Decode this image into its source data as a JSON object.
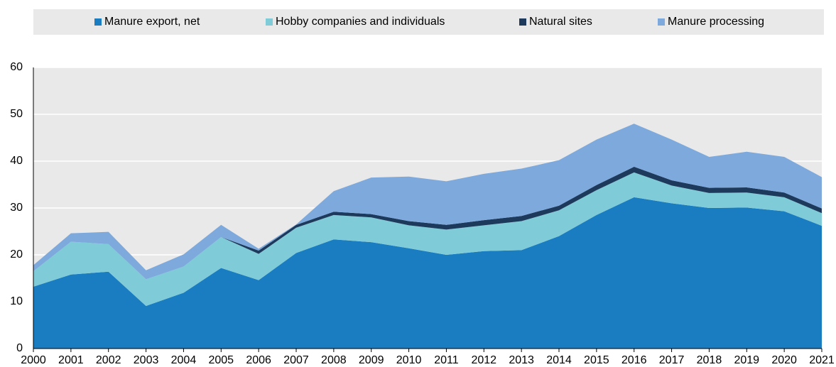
{
  "chart_data": {
    "type": "stacked_area",
    "categories": [
      "2000",
      "2001",
      "2002",
      "2003",
      "2004",
      "2005",
      "2006",
      "2007",
      "2008",
      "2009",
      "2010",
      "2011",
      "2012",
      "2013",
      "2014",
      "2015",
      "2016",
      "2017",
      "2018",
      "2019",
      "2020",
      "2021"
    ],
    "series": [
      {
        "name": "Manure export, net",
        "color": "#1a7dc2",
        "values": [
          13.2,
          15.8,
          16.4,
          9.1,
          11.9,
          17.2,
          14.6,
          20.4,
          23.3,
          22.7,
          21.4,
          20.0,
          20.8,
          21.0,
          24.0,
          28.5,
          32.3,
          31.0,
          30.0,
          30.1,
          29.3,
          26.2
        ]
      },
      {
        "name": "Hobby companies and individuals",
        "color": "#7fcbd8",
        "values": [
          3.3,
          7.0,
          5.9,
          5.7,
          5.6,
          6.6,
          5.6,
          5.4,
          5.2,
          5.3,
          4.9,
          5.4,
          5.5,
          6.2,
          5.5,
          5.3,
          5.3,
          3.8,
          3.2,
          3.2,
          3.0,
          2.7
        ]
      },
      {
        "name": "Natural sites",
        "color": "#1d3a5c",
        "values": [
          0,
          0,
          0,
          0,
          0,
          0,
          0.7,
          0.6,
          0.7,
          0.7,
          0.9,
          1.0,
          1.1,
          1.1,
          1.0,
          1.1,
          1.2,
          1.1,
          1.1,
          1.1,
          1.0,
          1.0
        ]
      },
      {
        "name": "Manure processing",
        "color": "#7ea9dc",
        "values": [
          1.3,
          1.8,
          2.6,
          1.9,
          2.6,
          2.6,
          0.4,
          0.1,
          4.4,
          7.8,
          9.5,
          9.3,
          9.9,
          10.1,
          9.7,
          9.7,
          9.2,
          8.7,
          6.6,
          7.6,
          7.6,
          6.7
        ]
      }
    ],
    "ylim": [
      0,
      60
    ],
    "yticks": [
      0,
      10,
      20,
      30,
      40,
      50,
      60
    ],
    "grid": true
  }
}
